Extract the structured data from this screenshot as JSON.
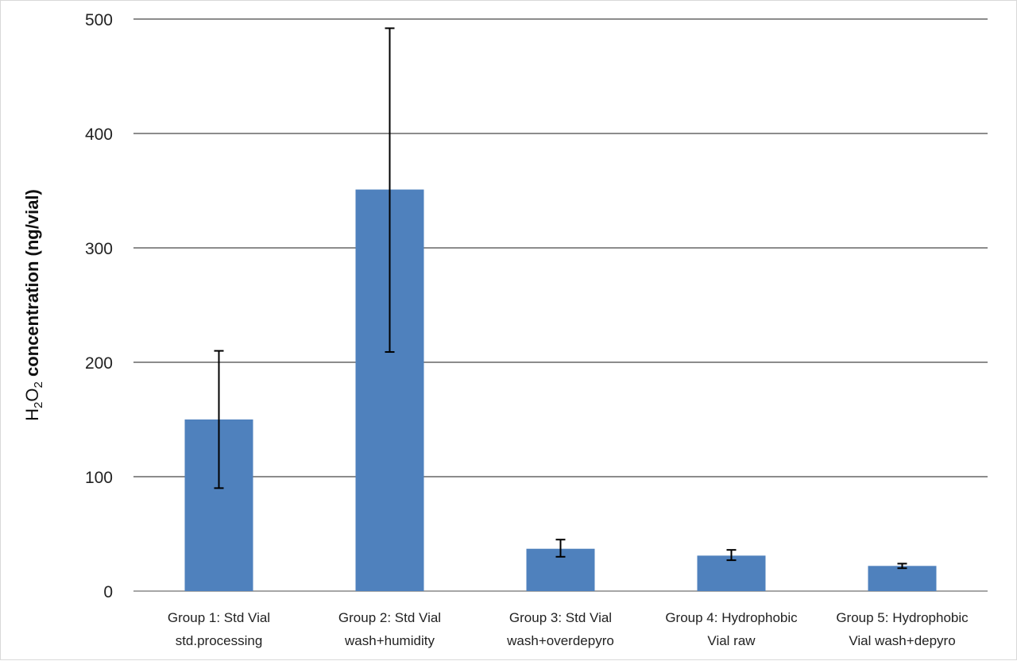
{
  "chart_data": {
    "type": "bar",
    "title": "",
    "ylabel": {
      "h": "H",
      "sub2a": "2",
      "o": "O",
      "sub2b": "2",
      "rest": " concentration (ng/vial)"
    },
    "xlabel": "",
    "ylim": [
      0,
      500
    ],
    "yticks": [
      0,
      100,
      200,
      300,
      400,
      500
    ],
    "grid": true,
    "color": "#4f81bd",
    "categories": [
      [
        "Group 1: Std Vial",
        "std.processing"
      ],
      [
        "Group 2: Std Vial",
        "wash+humidity"
      ],
      [
        "Group 3: Std Vial",
        "wash+overdepyro"
      ],
      [
        "Group 4: Hydrophobic",
        "Vial raw"
      ],
      [
        "Group 5: Hydrophobic",
        "Vial wash+depyro"
      ]
    ],
    "values": [
      150,
      351,
      37,
      31,
      22
    ],
    "error_low": [
      90,
      209,
      30,
      27,
      20
    ],
    "error_high": [
      210,
      492,
      45,
      36,
      24
    ]
  }
}
